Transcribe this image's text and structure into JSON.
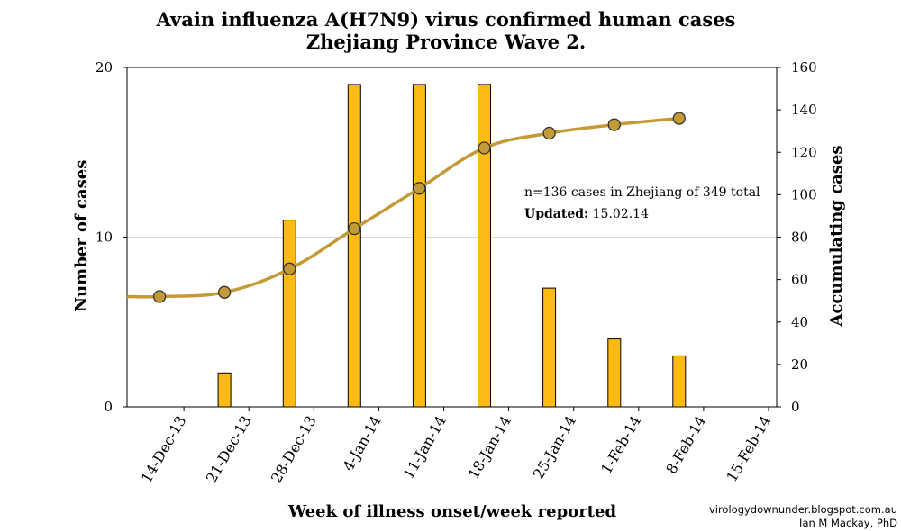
{
  "chart_data": {
    "type": "bar+line",
    "title": "Avain influenza A(H7N9) virus confirmed  human cases",
    "subtitle": "Zhejiang Province Wave 2.",
    "xlabel": "Week of illness onset/week reported",
    "ylabel_left": "Number of cases",
    "ylabel_right": "Accumulating cases",
    "x_tick_labels": [
      "14-Dec-13",
      "21-Dec-13",
      "28-Dec-13",
      "4-Jan-14",
      "11-Jan-14",
      "18-Jan-14",
      "25-Jan-14",
      "1-Feb-14",
      "8-Feb-14",
      "15-Feb-14"
    ],
    "ylim_left": [
      0,
      20
    ],
    "yticks_left": [
      0,
      10,
      20
    ],
    "ylim_right": [
      0,
      160
    ],
    "yticks_right": [
      0,
      20,
      40,
      60,
      80,
      100,
      120,
      140,
      160
    ],
    "series": [
      {
        "name": "Number of cases",
        "type": "bar",
        "axis": "left",
        "color": "#FDBA12",
        "x_week_index": [
          1,
          2,
          3,
          4,
          5,
          6,
          7,
          8
        ],
        "values": [
          2,
          11,
          19,
          19,
          19,
          7,
          4,
          3
        ]
      },
      {
        "name": "Accumulating cases",
        "type": "line",
        "axis": "right",
        "color": "#C39A35",
        "x_week_index": [
          0,
          1,
          2,
          3,
          4,
          5,
          6,
          7,
          8
        ],
        "values": [
          52,
          54,
          65,
          84,
          103,
          122,
          129,
          133,
          136
        ]
      }
    ],
    "annotation": {
      "line1": "n=136 cases in Zhejiang of 349 total",
      "line2_label": "Updated:",
      "line2_value": " 15.02.14"
    },
    "credit": {
      "line1": "virologydownunder.blogspot.com.au",
      "line2": "Ian M Mackay, PhD"
    }
  }
}
